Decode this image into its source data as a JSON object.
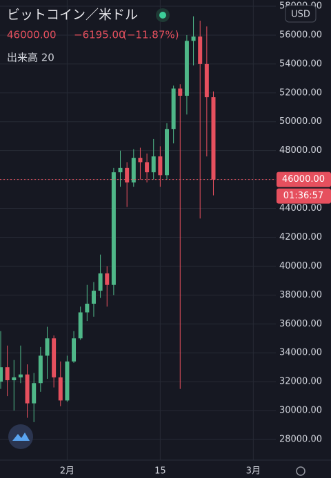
{
  "header": {
    "title": "ビットコイン／米ドル",
    "price": "46000.00",
    "change": "−6195.00",
    "change_pct": "(−11.87%)",
    "indicator": "出来高 20",
    "currency": "USD"
  },
  "chart_data": {
    "type": "candlestick",
    "categories": [
      null,
      null,
      null,
      null,
      null,
      null,
      null,
      null,
      null,
      null,
      "2月",
      null,
      null,
      null,
      null,
      null,
      null,
      null,
      null,
      null,
      null,
      null,
      null,
      null,
      "15",
      null,
      null,
      null,
      null,
      null,
      null,
      null,
      null,
      null,
      null,
      null,
      null,
      null,
      "3月",
      null,
      null,
      null
    ],
    "open": [
      32000,
      33000,
      32100,
      32300,
      32500,
      30500,
      31900,
      33800,
      35000,
      32300,
      30700,
      33400,
      35000,
      36800,
      37400,
      38300,
      39500,
      38700,
      46500,
      46800,
      45800,
      47500,
      47200,
      46500,
      47600,
      46300,
      49500,
      52300,
      51800,
      55600,
      55900,
      54000,
      51700,
      null,
      null,
      null,
      null,
      null,
      null,
      null,
      null,
      null
    ],
    "high": [
      35500,
      34500,
      33500,
      34500,
      33200,
      32600,
      34400,
      35800,
      35200,
      33400,
      33800,
      35500,
      37200,
      38700,
      38900,
      40800,
      40000,
      46800,
      48000,
      47200,
      48100,
      48200,
      47800,
      48800,
      48300,
      49900,
      52500,
      52600,
      56000,
      57300,
      57000,
      56600,
      52100,
      null,
      null,
      null,
      null,
      null,
      null,
      null,
      null,
      null
    ],
    "low": [
      31500,
      31000,
      30000,
      31900,
      29500,
      29200,
      31300,
      32200,
      31600,
      30300,
      30600,
      33300,
      34900,
      36200,
      36500,
      37800,
      37200,
      38000,
      45500,
      44100,
      45500,
      46000,
      45800,
      46000,
      45500,
      46000,
      48500,
      31500,
      50500,
      53900,
      43300,
      47600,
      44900,
      null,
      null,
      null,
      null,
      null,
      null,
      null,
      null,
      null
    ],
    "close": [
      33000,
      32100,
      32300,
      32500,
      30500,
      31900,
      33800,
      35000,
      32300,
      30700,
      33400,
      35000,
      36800,
      37400,
      38300,
      39500,
      38700,
      46500,
      46800,
      45800,
      47500,
      47200,
      46500,
      47600,
      46300,
      49500,
      52300,
      51800,
      55600,
      55900,
      54000,
      51700,
      46000,
      null,
      null,
      null,
      null,
      null,
      null,
      null,
      null,
      null
    ],
    "up_color": "#4fb788",
    "down_color": "#e6505e",
    "ylim": [
      26570,
      58430
    ],
    "yticks": [
      {
        "value": 28000,
        "label": "28000.00"
      },
      {
        "value": 30000,
        "label": "30000.00"
      },
      {
        "value": 32000,
        "label": "32000.00"
      },
      {
        "value": 34000,
        "label": "34000.00"
      },
      {
        "value": 36000,
        "label": "36000.00"
      },
      {
        "value": 38000,
        "label": "38000.00"
      },
      {
        "value": 40000,
        "label": "40000.00"
      },
      {
        "value": 42000,
        "label": "42000.00"
      },
      {
        "value": 44000,
        "label": "44000.00"
      },
      {
        "value": 46000,
        "label": "46000.00"
      },
      {
        "value": 48000,
        "label": "48000.00"
      },
      {
        "value": 50000,
        "label": "50000.00"
      },
      {
        "value": 52000,
        "label": "52000.00"
      },
      {
        "value": 54000,
        "label": "54000.00"
      },
      {
        "value": 56000,
        "label": "56000.00"
      },
      {
        "value": 58000,
        "label": "58000.00"
      }
    ],
    "grid": true,
    "last_price": {
      "value": 46000,
      "label": "46000.00"
    },
    "countdown": "01:36:57"
  }
}
